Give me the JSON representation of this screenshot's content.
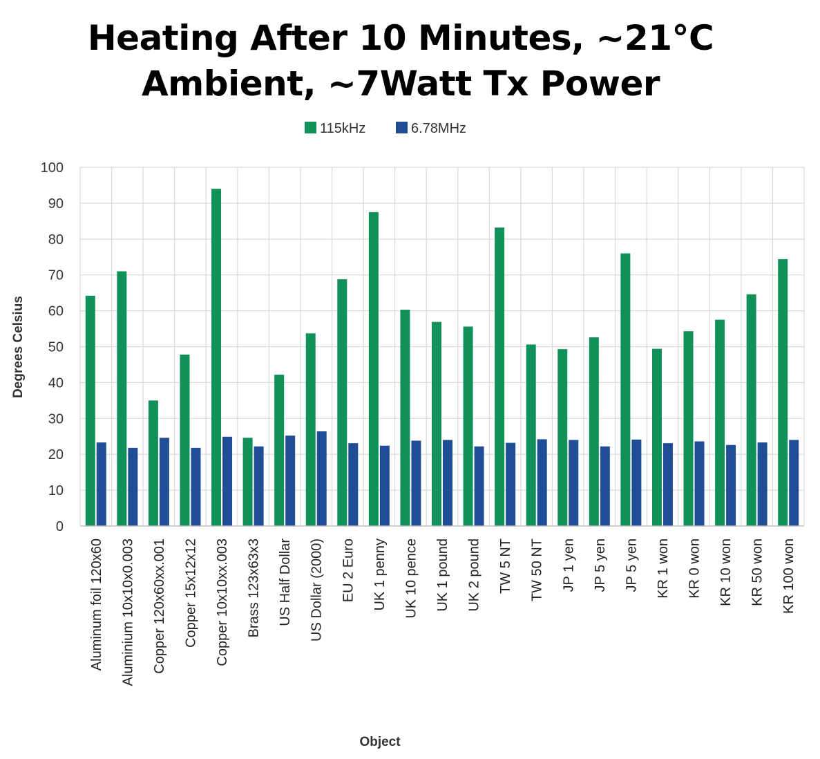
{
  "chart_data": {
    "type": "bar",
    "title_lines": [
      "Heating After 10 Minutes, ~21°C",
      "Ambient, ~7Watt Tx Power"
    ],
    "xlabel": "Object",
    "ylabel": "Degrees Celsius",
    "ylim": [
      0,
      100
    ],
    "yticks": [
      0,
      10,
      20,
      30,
      40,
      50,
      60,
      70,
      80,
      90,
      100
    ],
    "grid": true,
    "legend_position": "top-center",
    "categories": [
      "Aluminum foil 120x60",
      "Aluminium 10x10x0.003",
      "Copper 120x60xx.001",
      "Copper 15x12x12",
      "Copper 10x10xx.003",
      "Brass 123x63x3",
      "US Half Dollar",
      "US Dollar (2000)",
      "EU 2 Euro",
      "UK 1 penny",
      "UK 10 pence",
      "UK 1 pound",
      "UK 2 pound",
      "TW 5 NT",
      "TW 50 NT",
      "JP 1 yen",
      "JP 5 yen",
      "JP 5 yen",
      "KR 1 won",
      "KR 0 won",
      "KR 10 won",
      "KR 50 won",
      "KR 100 won"
    ],
    "series": [
      {
        "name": "115kHz",
        "color": "#11915a",
        "values": [
          64.2,
          71,
          35,
          47.8,
          94,
          24.6,
          42.2,
          53.7,
          68.8,
          87.5,
          60.3,
          56.9,
          55.6,
          83.2,
          50.6,
          49.3,
          52.6,
          76,
          49.4,
          54.3,
          57.5,
          64.6,
          74.4
        ]
      },
      {
        "name": "6.78MHz",
        "color": "#1f4e96",
        "values": [
          23.3,
          21.8,
          24.6,
          21.8,
          24.9,
          22.2,
          25.2,
          26.4,
          23.1,
          22.4,
          23.8,
          24,
          22.2,
          23.2,
          24.2,
          24,
          22.2,
          24.1,
          23.1,
          23.6,
          22.6,
          23.3,
          24
        ]
      }
    ]
  }
}
